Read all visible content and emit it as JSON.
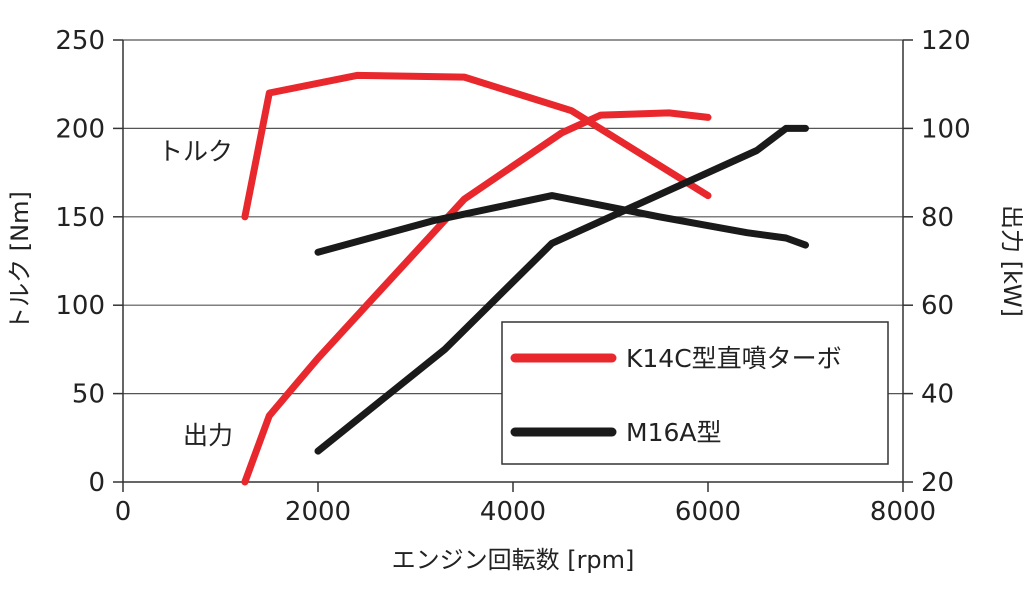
{
  "chart_data": {
    "type": "line",
    "x_axis": {
      "label": "エンジン回転数 [rpm]",
      "range": [
        0,
        8000
      ],
      "ticks": [
        "0",
        "2000",
        "4000",
        "6000",
        "8000"
      ]
    },
    "y_axis_left": {
      "label": "トルク [Nm]",
      "range": [
        0,
        250
      ],
      "ticks": [
        "0",
        "50",
        "100",
        "150",
        "200",
        "250"
      ]
    },
    "y_axis_right": {
      "label": "出力 [kW]",
      "range": [
        20,
        120
      ],
      "ticks": [
        "20",
        "40",
        "60",
        "80",
        "100",
        "120"
      ]
    },
    "grid": "horizontal",
    "annotations": {
      "torque": "トルク",
      "power": "出力"
    },
    "legend": {
      "placement": "bottom-right"
    },
    "series": [
      {
        "name": "K14C型直噴ターボ",
        "color": "#e8282d",
        "torque": {
          "axis": "left",
          "x": [
            1250,
            1500,
            2400,
            3500,
            4600,
            6000
          ],
          "y": [
            150,
            220,
            230,
            229,
            210,
            162
          ]
        },
        "power": {
          "axis": "right",
          "x": [
            1250,
            1500,
            2000,
            3500,
            4500,
            4900,
            5600,
            6000
          ],
          "y": [
            20,
            35,
            48,
            84,
            99,
            103,
            103.5,
            102.5
          ]
        }
      },
      {
        "name": "M16A型",
        "color": "#1a1a1a",
        "torque": {
          "axis": "left",
          "x": [
            2000,
            3200,
            4400,
            5500,
            6400,
            6800,
            7000
          ],
          "y": [
            130,
            148,
            162,
            150,
            141,
            138,
            134
          ]
        },
        "power": {
          "axis": "right",
          "x": [
            2000,
            3300,
            4400,
            5500,
            6500,
            6800,
            7000
          ],
          "y": [
            27,
            50,
            74,
            85,
            95,
            100,
            100
          ]
        }
      }
    ]
  }
}
